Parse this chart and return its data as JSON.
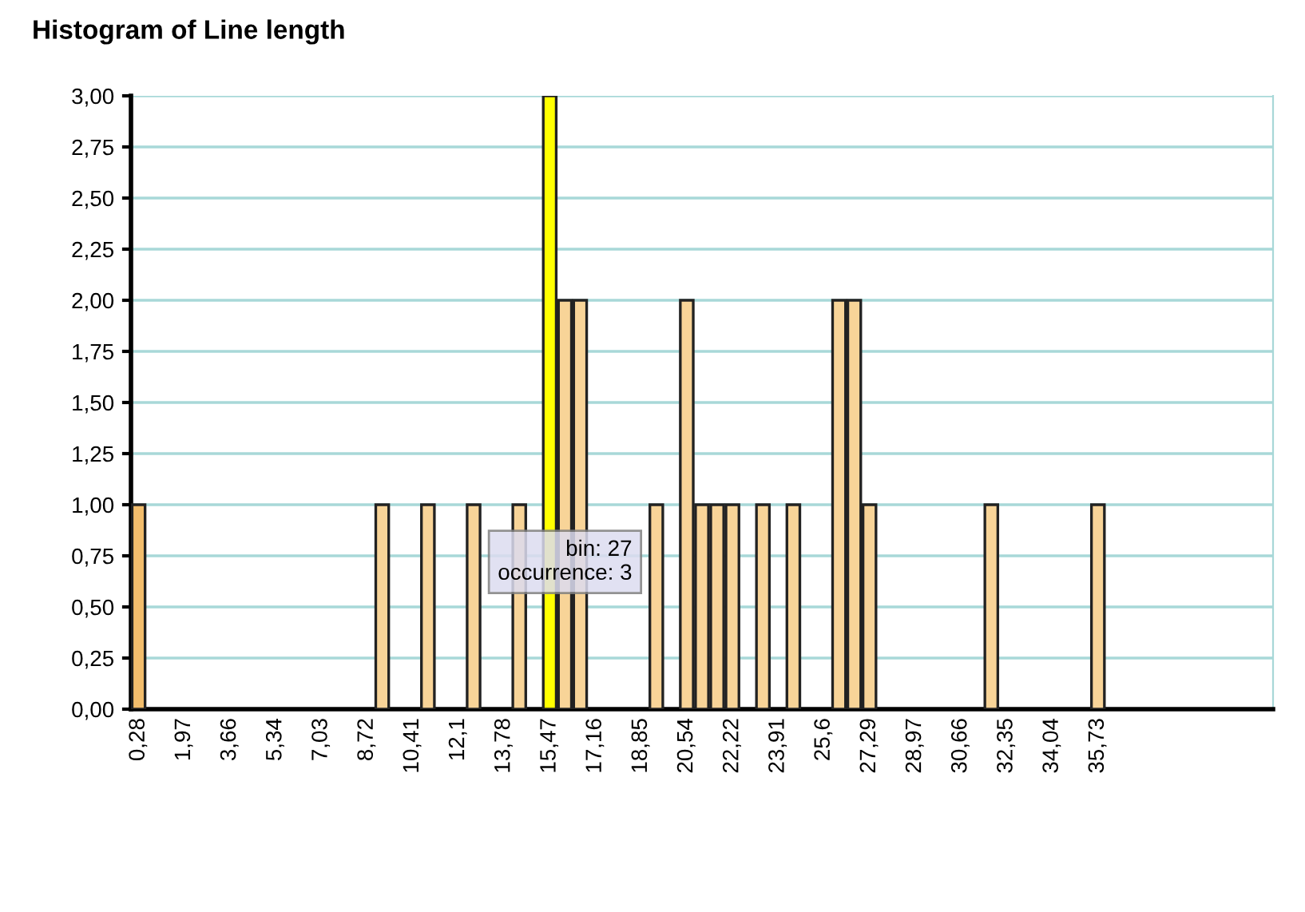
{
  "chart_data": {
    "type": "bar",
    "title": "Histogram of Line length",
    "categories": [
      "0,28",
      null,
      null,
      "1,97",
      null,
      null,
      "3,66",
      null,
      null,
      "5,34",
      null,
      null,
      "7,03",
      null,
      null,
      "8,72",
      null,
      null,
      "10,41",
      null,
      null,
      "12,1",
      null,
      null,
      "13,78",
      null,
      null,
      "15,47",
      null,
      null,
      "17,16",
      null,
      null,
      "18,85",
      null,
      null,
      "20,54",
      null,
      null,
      "22,22",
      null,
      null,
      "23,91",
      null,
      null,
      "25,6",
      null,
      null,
      "27,29",
      null,
      null,
      "28,97",
      null,
      null,
      "30,66",
      null,
      null,
      "32,35",
      null,
      null,
      "34,04",
      null,
      null,
      "35,73",
      null,
      null,
      null,
      null,
      null,
      null,
      null,
      null,
      null,
      null,
      null
    ],
    "values": [
      1,
      0,
      0,
      0,
      0,
      0,
      0,
      0,
      0,
      0,
      0,
      0,
      0,
      0,
      0,
      0,
      1,
      0,
      0,
      1,
      0,
      0,
      1,
      0,
      0,
      1,
      0,
      3,
      2,
      2,
      0,
      0,
      0,
      0,
      1,
      0,
      2,
      1,
      1,
      1,
      0,
      1,
      0,
      1,
      0,
      0,
      2,
      2,
      1,
      0,
      0,
      0,
      0,
      0,
      0,
      0,
      1,
      0,
      0,
      0,
      0,
      0,
      0,
      1,
      0,
      0,
      0,
      0,
      0,
      0,
      0,
      0,
      0,
      0,
      0
    ],
    "colors": [
      "#f2bd6c",
      "#f8d498",
      "#f8d498",
      "#f8d498",
      "#f8d498",
      "#f8d498",
      "#f8d498",
      "#f8d498",
      "#f8d498",
      "#f8d498",
      "#f8d498",
      "#f8d498",
      "#f8d498",
      "#f8d498",
      "#f8d498",
      "#f8d498",
      "#f8d498",
      "#f8d498",
      "#f8d498",
      "#f8d498",
      "#f8d498",
      "#f8d498",
      "#f8d498",
      "#f8d498",
      "#f8d498",
      "#f8d498",
      "#f8d498",
      "#ffff00",
      "#f8d498",
      "#f8d498",
      "#f8d498",
      "#f8d498",
      "#f8d498",
      "#f8d498",
      "#f8d498",
      "#f8d498",
      "#f8d498",
      "#f8d498",
      "#f8d498",
      "#f8d498",
      "#f8d498",
      "#f8d498",
      "#f8d498",
      "#f8d498",
      "#f8d498",
      "#f8d498",
      "#f8d498",
      "#f8d498",
      "#f8d498",
      "#f8d498",
      "#f8d498",
      "#f8d498",
      "#f8d498",
      "#f8d498",
      "#f8d498",
      "#f8d498",
      "#f8d498",
      "#f8d498",
      "#f8d498",
      "#f8d498",
      "#f8d498",
      "#f8d498",
      "#f8d498",
      "#f8d498",
      "#f8d498",
      "#f8d498",
      "#f8d498",
      "#f8d498",
      "#f8d498",
      "#f8d498",
      "#f8d498",
      "#f8d498",
      "#f8d498",
      "#f8d498",
      "#f8d498"
    ],
    "ylim": [
      0,
      3
    ],
    "yticks": [
      {
        "value": 0,
        "label": "0,00"
      },
      {
        "value": 0.25,
        "label": "0,25"
      },
      {
        "value": 0.5,
        "label": "0,50"
      },
      {
        "value": 0.75,
        "label": "0,75"
      },
      {
        "value": 1,
        "label": "1,00"
      },
      {
        "value": 1.25,
        "label": "1,25"
      },
      {
        "value": 1.5,
        "label": "1,50"
      },
      {
        "value": 1.75,
        "label": "1,75"
      },
      {
        "value": 2,
        "label": "2,00"
      },
      {
        "value": 2.25,
        "label": "2,25"
      },
      {
        "value": 2.5,
        "label": "2,50"
      },
      {
        "value": 2.75,
        "label": "2,75"
      },
      {
        "value": 3,
        "label": "3,00"
      }
    ],
    "grid": "y",
    "annotations": [
      "bin: 27\noccurrence: 3"
    ]
  }
}
